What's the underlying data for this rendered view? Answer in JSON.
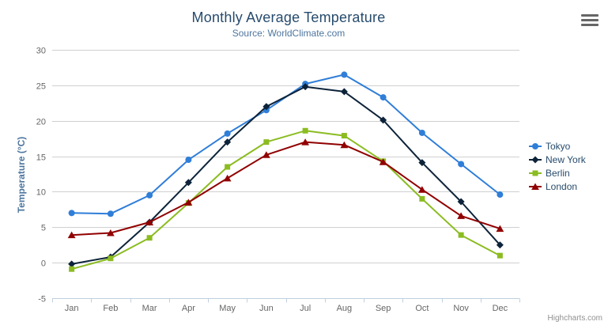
{
  "chart_data": {
    "type": "line",
    "title": "Monthly Average Temperature",
    "subtitle": "Source: WorldClimate.com",
    "categories": [
      "Jan",
      "Feb",
      "Mar",
      "Apr",
      "May",
      "Jun",
      "Jul",
      "Aug",
      "Sep",
      "Oct",
      "Nov",
      "Dec"
    ],
    "xlabel": "",
    "ylabel": "Temperature (°C)",
    "ylim": [
      -5,
      30
    ],
    "ytick_interval": 5,
    "grid": true,
    "legend_position": "right",
    "series": [
      {
        "name": "Tokyo",
        "color": "#2f7ed8",
        "marker": "circle",
        "values": [
          7.0,
          6.9,
          9.5,
          14.5,
          18.2,
          21.5,
          25.2,
          26.5,
          23.3,
          18.3,
          13.9,
          9.6
        ]
      },
      {
        "name": "New York",
        "color": "#0d233a",
        "marker": "diamond",
        "values": [
          -0.2,
          0.8,
          5.7,
          11.3,
          17.0,
          22.0,
          24.8,
          24.1,
          20.1,
          14.1,
          8.6,
          2.5
        ]
      },
      {
        "name": "Berlin",
        "color": "#8bbc21",
        "marker": "square",
        "values": [
          -0.9,
          0.6,
          3.5,
          8.4,
          13.5,
          17.0,
          18.6,
          17.9,
          14.3,
          9.0,
          3.9,
          1.0
        ]
      },
      {
        "name": "London",
        "color": "#910000",
        "marker": "triangle",
        "values": [
          3.9,
          4.2,
          5.7,
          8.5,
          11.9,
          15.2,
          17.0,
          16.6,
          14.2,
          10.3,
          6.6,
          4.8
        ]
      }
    ]
  },
  "credits": "Highcharts.com",
  "colors": {
    "title": "#274b6d",
    "subtitle": "#4d759e",
    "axis_title": "#4d759e",
    "axis_label": "#666666",
    "grid_line": "#d0d0d0",
    "axis_line": "#c0d0e0",
    "legend_text": "#274b6d",
    "credits": "#909090",
    "menu_icon": "#666666",
    "background": "#ffffff"
  }
}
